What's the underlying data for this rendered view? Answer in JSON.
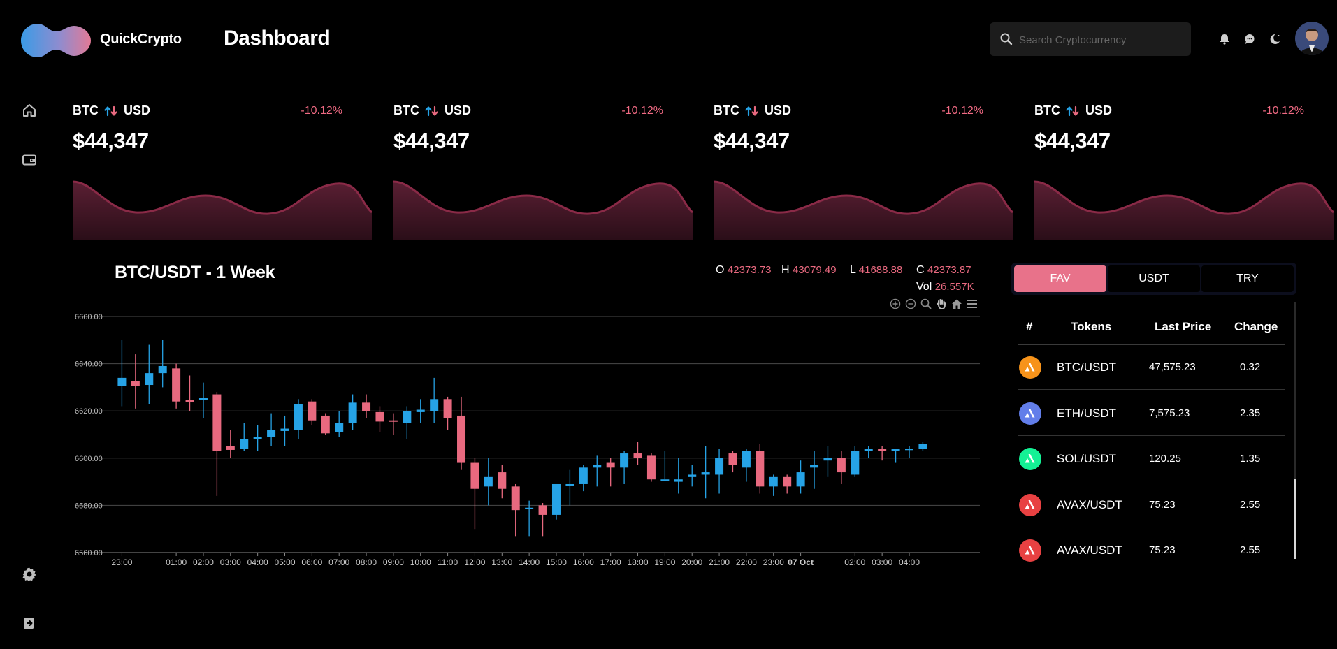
{
  "app": {
    "brand": "QuickCrypto",
    "page_title": "Dashboard"
  },
  "search": {
    "placeholder": "Search Cryptocurrency"
  },
  "header_icons": [
    "bell-icon",
    "chat-icon",
    "moon-icon"
  ],
  "sidebar": {
    "top": [
      "home-icon",
      "wallet-icon"
    ],
    "bottom": [
      "gear-icon",
      "logout-icon"
    ]
  },
  "cards": [
    {
      "base": "BTC",
      "quote": "USD",
      "change": "-10.12%",
      "price": "$44,347"
    },
    {
      "base": "BTC",
      "quote": "USD",
      "change": "-10.12%",
      "price": "$44,347"
    },
    {
      "base": "BTC",
      "quote": "USD",
      "change": "-10.12%",
      "price": "$44,347"
    },
    {
      "base": "BTC",
      "quote": "USD",
      "change": "-10.12%",
      "price": "$44,347"
    }
  ],
  "colors": {
    "up": "#26a3e6",
    "down": "#e8697f",
    "accent": "#e8728a",
    "spark_line": "#8a2a47"
  },
  "chart": {
    "title": "BTC/USDT - 1 Week",
    "ohlc": {
      "o_label": "O",
      "o": "42373.73",
      "h_label": "H",
      "h": "43079.49",
      "l_label": "L",
      "l": "41688.88",
      "c_label": "C",
      "c": "42373.87",
      "vol_label": "Vol",
      "vol": "26.557K"
    },
    "toolbar": [
      "zoom-in-icon",
      "zoom-out-icon",
      "magnify-icon",
      "pan-hand-icon",
      "home-icon",
      "menu-icon"
    ]
  },
  "chart_data": {
    "type": "candlestick",
    "title": "BTC/USDT - 1 Week",
    "ylim": [
      6560,
      6660
    ],
    "y_ticks": [
      "6560.00",
      "6580.00",
      "6600.00",
      "6620.00",
      "6640.00",
      "6660.00"
    ],
    "x_ticks": [
      {
        "label": "23:00",
        "t": 0
      },
      {
        "label": "01:00",
        "t": 2
      },
      {
        "label": "02:00",
        "t": 3
      },
      {
        "label": "03:00",
        "t": 4
      },
      {
        "label": "04:00",
        "t": 5
      },
      {
        "label": "05:00",
        "t": 6
      },
      {
        "label": "06:00",
        "t": 7
      },
      {
        "label": "07:00",
        "t": 8
      },
      {
        "label": "08:00",
        "t": 9
      },
      {
        "label": "09:00",
        "t": 10
      },
      {
        "label": "10:00",
        "t": 11
      },
      {
        "label": "11:00",
        "t": 12
      },
      {
        "label": "12:00",
        "t": 13
      },
      {
        "label": "13:00",
        "t": 14
      },
      {
        "label": "14:00",
        "t": 15
      },
      {
        "label": "15:00",
        "t": 16
      },
      {
        "label": "16:00",
        "t": 17
      },
      {
        "label": "17:00",
        "t": 18
      },
      {
        "label": "18:00",
        "t": 19
      },
      {
        "label": "19:00",
        "t": 20
      },
      {
        "label": "20:00",
        "t": 21
      },
      {
        "label": "21:00",
        "t": 22
      },
      {
        "label": "22:00",
        "t": 23
      },
      {
        "label": "23:00",
        "t": 24
      },
      {
        "label": "07 Oct",
        "t": 25,
        "bold": true
      },
      {
        "label": "02:00",
        "t": 27
      },
      {
        "label": "03:00",
        "t": 28
      },
      {
        "label": "04:00",
        "t": 29
      }
    ],
    "t_range": [
      -0.5,
      31.6
    ],
    "candles": [
      {
        "t": 0,
        "o": 6630.5,
        "h": 6650,
        "l": 6622,
        "c": 6634
      },
      {
        "t": 0.5,
        "o": 6632.5,
        "h": 6644,
        "l": 6621,
        "c": 6630.5
      },
      {
        "t": 1,
        "o": 6631,
        "h": 6648,
        "l": 6623,
        "c": 6636
      },
      {
        "t": 1.5,
        "o": 6636,
        "h": 6650,
        "l": 6630,
        "c": 6639
      },
      {
        "t": 2,
        "o": 6638,
        "h": 6640,
        "l": 6621,
        "c": 6624
      },
      {
        "t": 2.5,
        "o": 6624.5,
        "h": 6635,
        "l": 6620,
        "c": 6624
      },
      {
        "t": 3,
        "o": 6624.5,
        "h": 6632,
        "l": 6617,
        "c": 6625.5
      },
      {
        "t": 3.5,
        "o": 6627,
        "h": 6628,
        "l": 6584,
        "c": 6603
      },
      {
        "t": 4,
        "o": 6605,
        "h": 6612,
        "l": 6600,
        "c": 6603.5
      },
      {
        "t": 4.5,
        "o": 6604,
        "h": 6615,
        "l": 6603,
        "c": 6608
      },
      {
        "t": 5,
        "o": 6608,
        "h": 6614,
        "l": 6603,
        "c": 6609
      },
      {
        "t": 5.5,
        "o": 6609,
        "h": 6619,
        "l": 6605,
        "c": 6612
      },
      {
        "t": 6,
        "o": 6611.5,
        "h": 6618,
        "l": 6605,
        "c": 6612.5
      },
      {
        "t": 6.5,
        "o": 6612,
        "h": 6625,
        "l": 6608,
        "c": 6623
      },
      {
        "t": 7,
        "o": 6624,
        "h": 6625,
        "l": 6614,
        "c": 6616
      },
      {
        "t": 7.5,
        "o": 6618,
        "h": 6619,
        "l": 6610,
        "c": 6610.5
      },
      {
        "t": 8,
        "o": 6611,
        "h": 6620,
        "l": 6609,
        "c": 6615
      },
      {
        "t": 8.5,
        "o": 6615,
        "h": 6627,
        "l": 6612,
        "c": 6623.5
      },
      {
        "t": 9,
        "o": 6623.5,
        "h": 6627,
        "l": 6617,
        "c": 6620
      },
      {
        "t": 9.5,
        "o": 6619.5,
        "h": 6622,
        "l": 6611,
        "c": 6615.5
      },
      {
        "t": 10,
        "o": 6616,
        "h": 6619,
        "l": 6610,
        "c": 6615.5
      },
      {
        "t": 10.5,
        "o": 6615,
        "h": 6622,
        "l": 6608,
        "c": 6620
      },
      {
        "t": 11,
        "o": 6619.5,
        "h": 6625,
        "l": 6615,
        "c": 6620.5
      },
      {
        "t": 11.5,
        "o": 6620,
        "h": 6634,
        "l": 6615,
        "c": 6625
      },
      {
        "t": 12,
        "o": 6625,
        "h": 6626,
        "l": 6612,
        "c": 6617
      },
      {
        "t": 12.5,
        "o": 6618,
        "h": 6626,
        "l": 6595,
        "c": 6598
      },
      {
        "t": 13,
        "o": 6598,
        "h": 6600,
        "l": 6570,
        "c": 6587
      },
      {
        "t": 13.5,
        "o": 6588,
        "h": 6600,
        "l": 6580,
        "c": 6592
      },
      {
        "t": 14,
        "o": 6594,
        "h": 6597,
        "l": 6583,
        "c": 6587
      },
      {
        "t": 14.5,
        "o": 6588,
        "h": 6589,
        "l": 6567,
        "c": 6578
      },
      {
        "t": 15,
        "o": 6579,
        "h": 6582,
        "l": 6567,
        "c": 6579
      },
      {
        "t": 15.5,
        "o": 6580,
        "h": 6581,
        "l": 6567,
        "c": 6576
      },
      {
        "t": 16,
        "o": 6576,
        "h": 6589,
        "l": 6574,
        "c": 6589
      },
      {
        "t": 16.5,
        "o": 6589,
        "h": 6595,
        "l": 6580,
        "c": 6589
      },
      {
        "t": 17,
        "o": 6589,
        "h": 6597,
        "l": 6586,
        "c": 6596
      },
      {
        "t": 17.5,
        "o": 6596,
        "h": 6601,
        "l": 6588,
        "c": 6597
      },
      {
        "t": 18,
        "o": 6598,
        "h": 6600,
        "l": 6588,
        "c": 6596
      },
      {
        "t": 18.5,
        "o": 6596,
        "h": 6603,
        "l": 6589,
        "c": 6602
      },
      {
        "t": 19,
        "o": 6602,
        "h": 6607,
        "l": 6597,
        "c": 6600
      },
      {
        "t": 19.5,
        "o": 6601,
        "h": 6602,
        "l": 6590,
        "c": 6591
      },
      {
        "t": 20,
        "o": 6591,
        "h": 6603,
        "l": 6591,
        "c": 6591
      },
      {
        "t": 20.5,
        "o": 6590,
        "h": 6600,
        "l": 6585,
        "c": 6591
      },
      {
        "t": 21,
        "o": 6592,
        "h": 6597,
        "l": 6588,
        "c": 6593
      },
      {
        "t": 21.5,
        "o": 6593,
        "h": 6605,
        "l": 6583,
        "c": 6594
      },
      {
        "t": 22,
        "o": 6593,
        "h": 6604,
        "l": 6585,
        "c": 6600
      },
      {
        "t": 22.5,
        "o": 6602,
        "h": 6603,
        "l": 6594,
        "c": 6597
      },
      {
        "t": 23,
        "o": 6596,
        "h": 6604,
        "l": 6590,
        "c": 6603
      },
      {
        "t": 23.5,
        "o": 6603,
        "h": 6606,
        "l": 6585,
        "c": 6588
      },
      {
        "t": 24,
        "o": 6588,
        "h": 6593,
        "l": 6584,
        "c": 6592
      },
      {
        "t": 24.5,
        "o": 6592,
        "h": 6593,
        "l": 6585,
        "c": 6588
      },
      {
        "t": 25,
        "o": 6588,
        "h": 6599,
        "l": 6585,
        "c": 6594
      },
      {
        "t": 25.5,
        "o": 6596,
        "h": 6603,
        "l": 6587,
        "c": 6597
      },
      {
        "t": 26,
        "o": 6599,
        "h": 6605,
        "l": 6592,
        "c": 6600
      },
      {
        "t": 26.5,
        "o": 6600,
        "h": 6603,
        "l": 6589,
        "c": 6594
      },
      {
        "t": 27,
        "o": 6593,
        "h": 6605,
        "l": 6592,
        "c": 6603
      },
      {
        "t": 27.5,
        "o": 6603,
        "h": 6605,
        "l": 6600,
        "c": 6604
      },
      {
        "t": 28,
        "o": 6604,
        "h": 6605,
        "l": 6599,
        "c": 6603
      },
      {
        "t": 28.5,
        "o": 6603,
        "h": 6604,
        "l": 6598,
        "c": 6604
      },
      {
        "t": 29,
        "o": 6604,
        "h": 6605,
        "l": 6600,
        "c": 6604
      },
      {
        "t": 29.5,
        "o": 6604,
        "h": 6607,
        "l": 6603,
        "c": 6606
      }
    ]
  },
  "right_panel": {
    "tabs": [
      {
        "label": "FAV",
        "active": true
      },
      {
        "label": "USDT"
      },
      {
        "label": "TRY"
      }
    ],
    "columns": {
      "num": "#",
      "tokens": "Tokens",
      "last_price": "Last Price",
      "change": "Change"
    },
    "rows": [
      {
        "icon": "bitcoin-icon",
        "color": "#f7931a",
        "token": "BTC/USDT",
        "last_price": "47,575.23",
        "change": "0.32"
      },
      {
        "icon": "ethereum-icon",
        "color": "#627eea",
        "token": "ETH/USDT",
        "last_price": "7,575.23",
        "change": "2.35"
      },
      {
        "icon": "solana-icon",
        "color": "#14f195",
        "token": "SOL/USDT",
        "last_price": "120.25",
        "change": "1.35"
      },
      {
        "icon": "avalanche-icon",
        "color": "#e84142",
        "token": "AVAX/USDT",
        "last_price": "75.23",
        "change": "2.55"
      },
      {
        "icon": "avalanche-icon",
        "color": "#e84142",
        "token": "AVAX/USDT",
        "last_price": "75.23",
        "change": "2.55"
      }
    ]
  }
}
